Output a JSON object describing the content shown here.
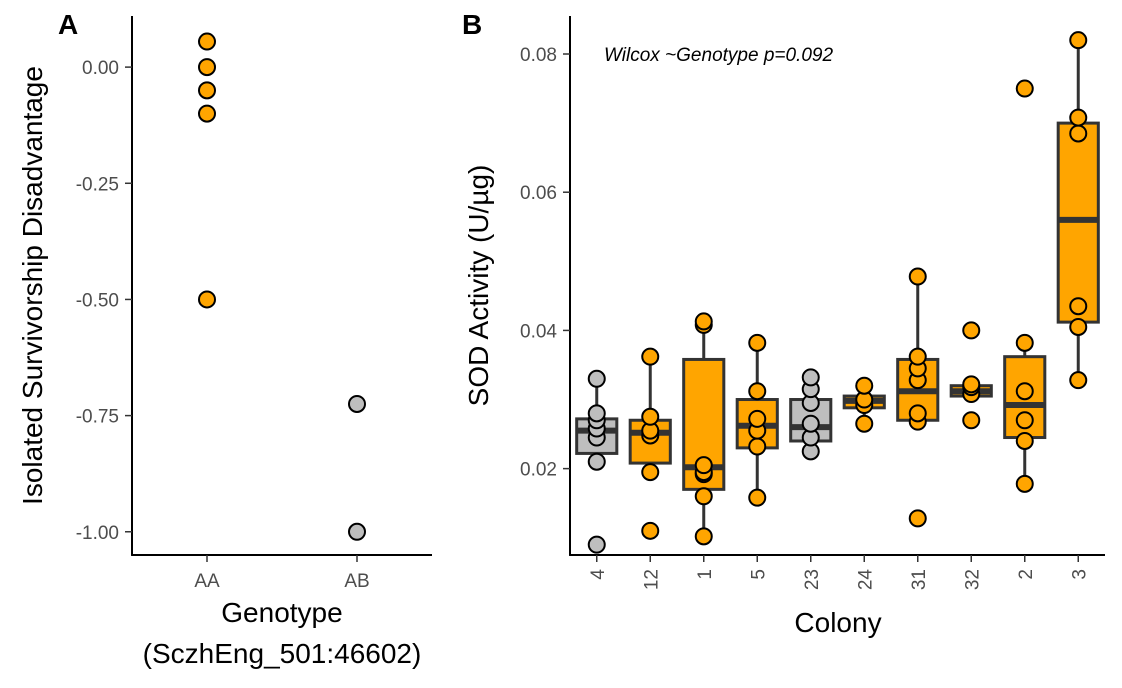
{
  "chart_data": [
    {
      "type": "scatter",
      "panel_label": "A",
      "xlabel": "Genotype",
      "xlabel_line2": "(SczhEng_501:46602)",
      "ylabel": "Isolated Survivorship Disadvantage",
      "categories": [
        "AA",
        "AB"
      ],
      "y_ticks": [
        "0.00",
        "-0.25",
        "-0.50",
        "-0.75",
        "-1.00"
      ],
      "y_tick_values": [
        0,
        -0.25,
        -0.5,
        -0.75,
        -1.0
      ],
      "ylim": [
        -1.05,
        0.11
      ],
      "grid": false,
      "points": [
        {
          "x": "AA",
          "y": 0.055,
          "color": "#FFA500"
        },
        {
          "x": "AA",
          "y": 0.0,
          "color": "#FFA500"
        },
        {
          "x": "AA",
          "y": -0.05,
          "color": "#FFA500"
        },
        {
          "x": "AA",
          "y": -0.1,
          "color": "#FFA500"
        },
        {
          "x": "AA",
          "y": -0.5,
          "color": "#FFA500"
        },
        {
          "x": "AB",
          "y": -0.725,
          "color": "#BEBEBE"
        },
        {
          "x": "AB",
          "y": -1.0,
          "color": "#BEBEBE"
        }
      ]
    },
    {
      "type": "box",
      "panel_label": "B",
      "xlabel": "Colony",
      "ylabel": "SOD Activity (U/µg)",
      "annotation": "Wilcox ~Genotype p=0.092",
      "categories": [
        "4",
        "12",
        "1",
        "5",
        "23",
        "24",
        "31",
        "32",
        "2",
        "3"
      ],
      "y_ticks": [
        "0.02",
        "0.04",
        "0.06",
        "0.08"
      ],
      "y_tick_values": [
        0.02,
        0.04,
        0.06,
        0.08
      ],
      "ylim": [
        0.0075,
        0.0855
      ],
      "grid": false,
      "boxes": [
        {
          "colony": "4",
          "fill": "#BEBEBE",
          "q1": 0.0222,
          "median": 0.0255,
          "q3": 0.0272,
          "whisker_low": 0.021,
          "whisker_high": 0.033,
          "points": [
            0.009,
            0.021,
            0.0245,
            0.0258,
            0.027,
            0.028,
            0.033
          ]
        },
        {
          "colony": "12",
          "fill": "#FFA500",
          "q1": 0.0208,
          "median": 0.0252,
          "q3": 0.027,
          "whisker_low": 0.0195,
          "whisker_high": 0.0362,
          "points": [
            0.011,
            0.0195,
            0.0248,
            0.0255,
            0.0275,
            0.0362
          ]
        },
        {
          "colony": "1",
          "fill": "#FFA500",
          "q1": 0.017,
          "median": 0.0202,
          "q3": 0.0358,
          "whisker_low": 0.0102,
          "whisker_high": 0.0412,
          "points": [
            0.0102,
            0.016,
            0.0192,
            0.0195,
            0.0205,
            0.0408,
            0.0413
          ]
        },
        {
          "colony": "5",
          "fill": "#FFA500",
          "q1": 0.023,
          "median": 0.0262,
          "q3": 0.03,
          "whisker_low": 0.0158,
          "whisker_high": 0.0382,
          "points": [
            0.0158,
            0.0232,
            0.0255,
            0.0272,
            0.0312,
            0.0382
          ]
        },
        {
          "colony": "23",
          "fill": "#BEBEBE",
          "q1": 0.024,
          "median": 0.026,
          "q3": 0.03,
          "whisker_low": 0.0225,
          "whisker_high": 0.0332,
          "points": [
            0.0225,
            0.0245,
            0.0265,
            0.0295,
            0.0315,
            0.0332
          ]
        },
        {
          "colony": "24",
          "fill": "#FFA500",
          "q1": 0.0288,
          "median": 0.0298,
          "q3": 0.0305,
          "whisker_low": 0.0265,
          "whisker_high": 0.032,
          "points": [
            0.0265,
            0.0292,
            0.03,
            0.032
          ]
        },
        {
          "colony": "31",
          "fill": "#FFA500",
          "q1": 0.027,
          "median": 0.0312,
          "q3": 0.0358,
          "whisker_low": 0.0265,
          "whisker_high": 0.0478,
          "points": [
            0.0128,
            0.0268,
            0.028,
            0.0328,
            0.0345,
            0.0362,
            0.0478
          ]
        },
        {
          "colony": "32",
          "fill": "#FFA500",
          "q1": 0.0305,
          "median": 0.0312,
          "q3": 0.032,
          "whisker_low": 0.0305,
          "whisker_high": 0.032,
          "points": [
            0.027,
            0.0308,
            0.0318,
            0.0322,
            0.04
          ]
        },
        {
          "colony": "2",
          "fill": "#FFA500",
          "q1": 0.0245,
          "median": 0.0292,
          "q3": 0.0362,
          "whisker_low": 0.0178,
          "whisker_high": 0.0382,
          "points": [
            0.0178,
            0.024,
            0.027,
            0.0312,
            0.0382,
            0.075
          ]
        },
        {
          "colony": "3",
          "fill": "#FFA500",
          "q1": 0.0412,
          "median": 0.056,
          "q3": 0.07,
          "whisker_low": 0.0328,
          "whisker_high": 0.082,
          "points": [
            0.0328,
            0.0405,
            0.0435,
            0.0685,
            0.0708,
            0.082
          ]
        }
      ]
    }
  ]
}
